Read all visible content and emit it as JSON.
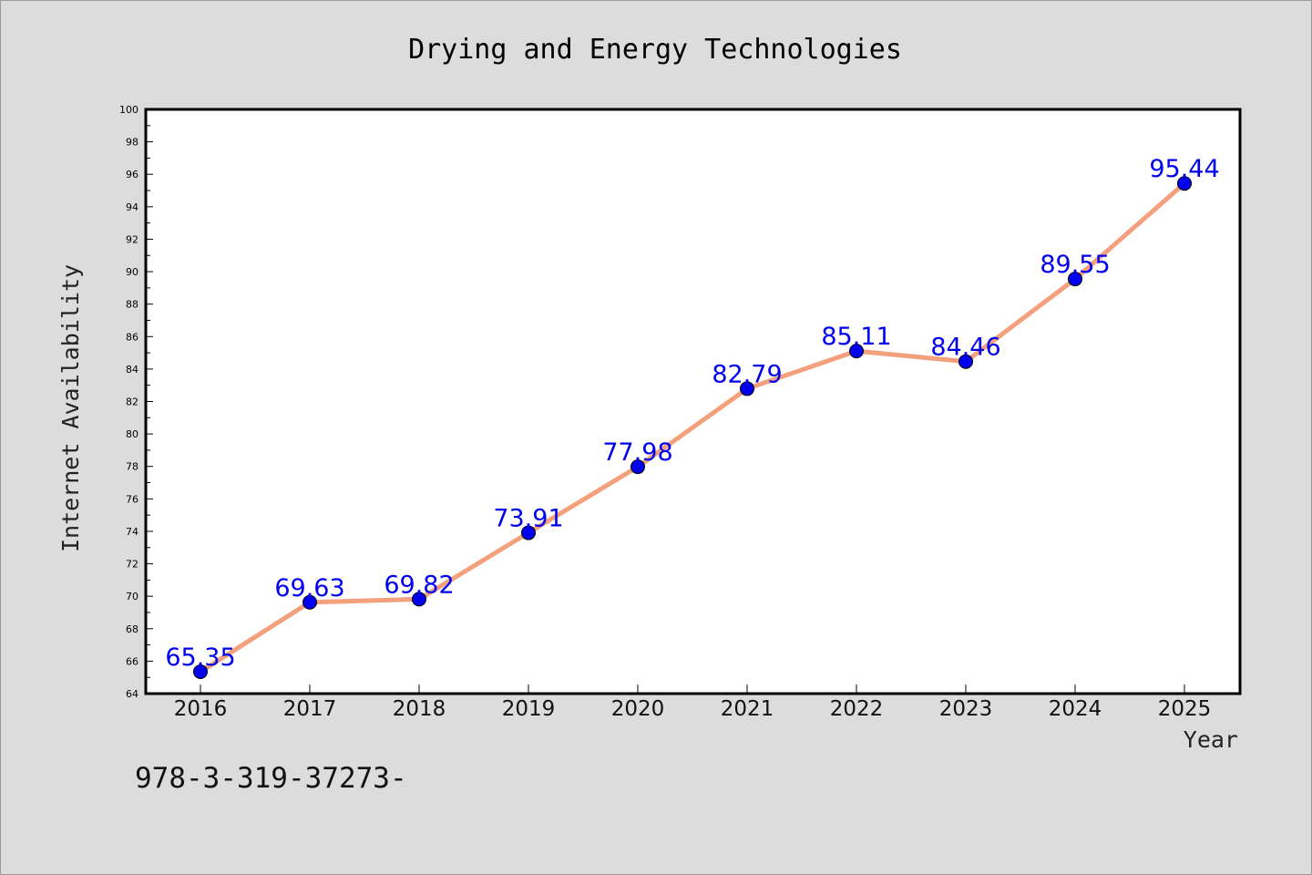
{
  "chart_data": {
    "type": "line",
    "title": "Drying and Energy Technologies",
    "xlabel": "Year",
    "ylabel": "Internet Availability",
    "categories": [
      "2016",
      "2017",
      "2018",
      "2019",
      "2020",
      "2021",
      "2022",
      "2023",
      "2024",
      "2025"
    ],
    "series": [
      {
        "values": [
          65.35,
          69.63,
          69.82,
          73.91,
          77.98,
          82.79,
          85.11,
          84.46,
          89.55,
          95.44
        ],
        "line_color": "#f4a07c",
        "marker_color": "#0000ee"
      }
    ],
    "data_labels": [
      "65.35",
      "69.63",
      "69.82",
      "73.91",
      "77.98",
      "82.79",
      "85.11",
      "84.46",
      "89.55",
      "95.44"
    ],
    "ylim": [
      64,
      100
    ],
    "yticks": [
      "64",
      "66",
      "68",
      "70",
      "72",
      "74",
      "76",
      "78",
      "80",
      "82",
      "84",
      "86",
      "88",
      "90",
      "92",
      "94",
      "96",
      "98",
      "100"
    ],
    "grid": false,
    "label_color": "#0000ee"
  },
  "footer_text": "978-3-319-37273-"
}
